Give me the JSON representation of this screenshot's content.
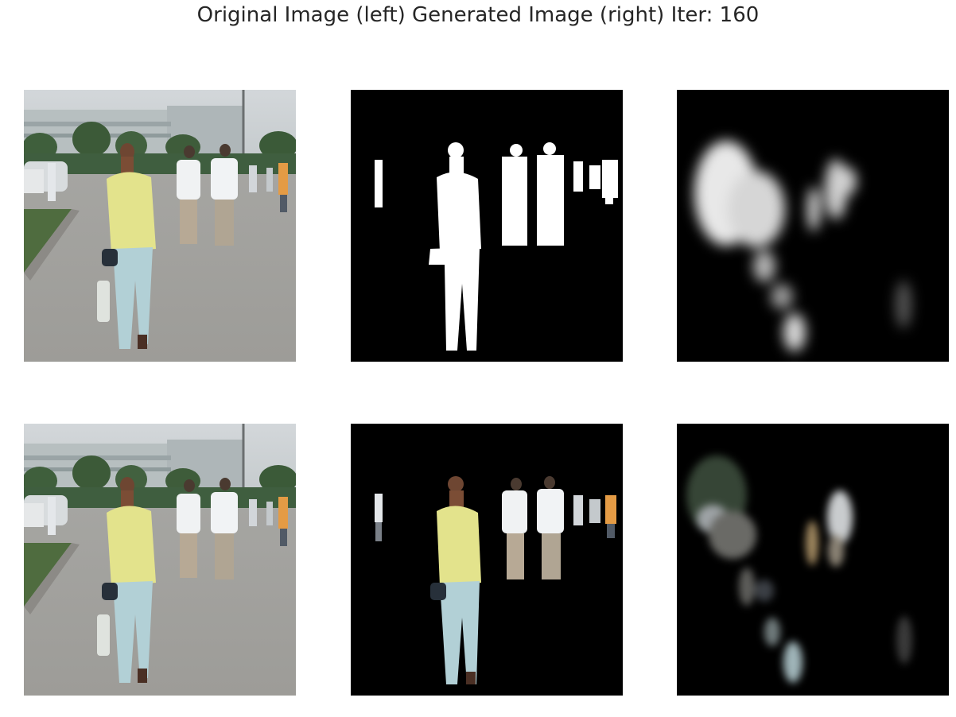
{
  "figure": {
    "title": "Original Image (left) Generated Image (right) Iter: 160"
  },
  "grid": {
    "rows": 2,
    "cols": 3,
    "panels": [
      {
        "row": 1,
        "col": 1,
        "content": "photo",
        "axis": "off"
      },
      {
        "row": 1,
        "col": 2,
        "content": "binary-mask",
        "axis": "off"
      },
      {
        "row": 1,
        "col": 3,
        "content": "predicted-mask",
        "axis": "off"
      },
      {
        "row": 2,
        "col": 1,
        "content": "photo",
        "axis": "off"
      },
      {
        "row": 2,
        "col": 2,
        "content": "masked-photo",
        "axis": "off"
      },
      {
        "row": 2,
        "col": 3,
        "content": "predicted-masked-photo",
        "axis": "off"
      }
    ]
  },
  "colors": {
    "background": "#ffffff",
    "title_text": "#262626",
    "sky": "#c9ced1",
    "building": "#b9c0c1",
    "trees": "#3d5b3c",
    "road": "#a7a6a3",
    "grass": "#4d6a3e",
    "shirt_yellow": "#e2e28c",
    "jeans": "#b1d0d6",
    "hair": "#7b4d35",
    "mask_white": "#ffffff",
    "mask_black": "#000000"
  }
}
